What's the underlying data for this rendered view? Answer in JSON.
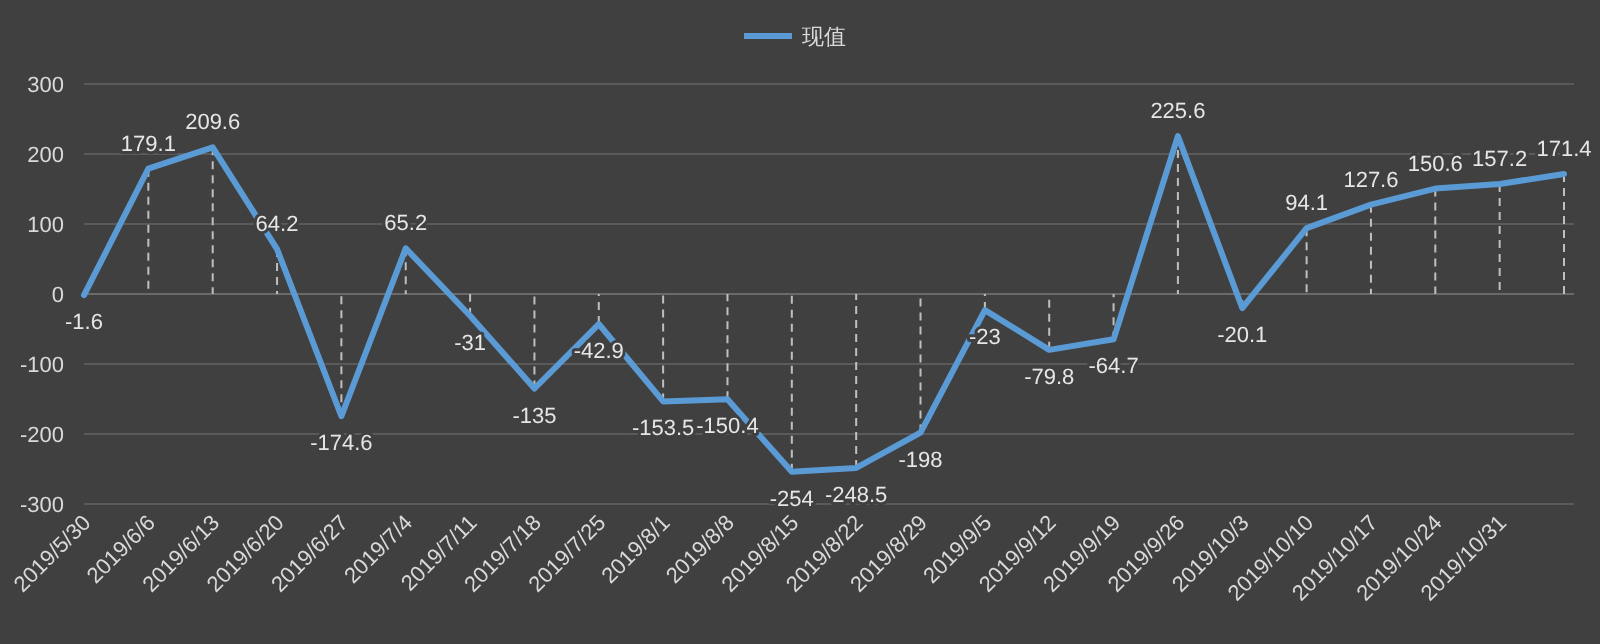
{
  "chart_data": {
    "type": "line",
    "categories": [
      "2019/5/30",
      "2019/6/6",
      "2019/6/13",
      "2019/6/20",
      "2019/6/27",
      "2019/7/4",
      "2019/7/11",
      "2019/7/18",
      "2019/7/25",
      "2019/8/1",
      "2019/8/8",
      "2019/8/15",
      "2019/8/22",
      "2019/8/29",
      "2019/9/5",
      "2019/9/12",
      "2019/9/19",
      "2019/9/26",
      "2019/10/3",
      "2019/10/10",
      "2019/10/17",
      "2019/10/24",
      "2019/10/31",
      null
    ],
    "series": [
      {
        "name": "现值",
        "color": "#5b9bd5",
        "values": [
          -1.6,
          179.1,
          209.6,
          64.2,
          -174.6,
          65.2,
          -31,
          -135,
          -42.9,
          -153.5,
          -150.4,
          -254,
          -248.5,
          -198,
          -23,
          -79.8,
          -64.7,
          225.6,
          -20.1,
          94.1,
          127.6,
          150.6,
          157.2,
          171.4
        ]
      }
    ],
    "ylim": [
      -300,
      300
    ],
    "yticks": [
      -300,
      -200,
      -100,
      0,
      100,
      200,
      300
    ],
    "grid": "y",
    "legend": "top",
    "data_labels": true
  }
}
